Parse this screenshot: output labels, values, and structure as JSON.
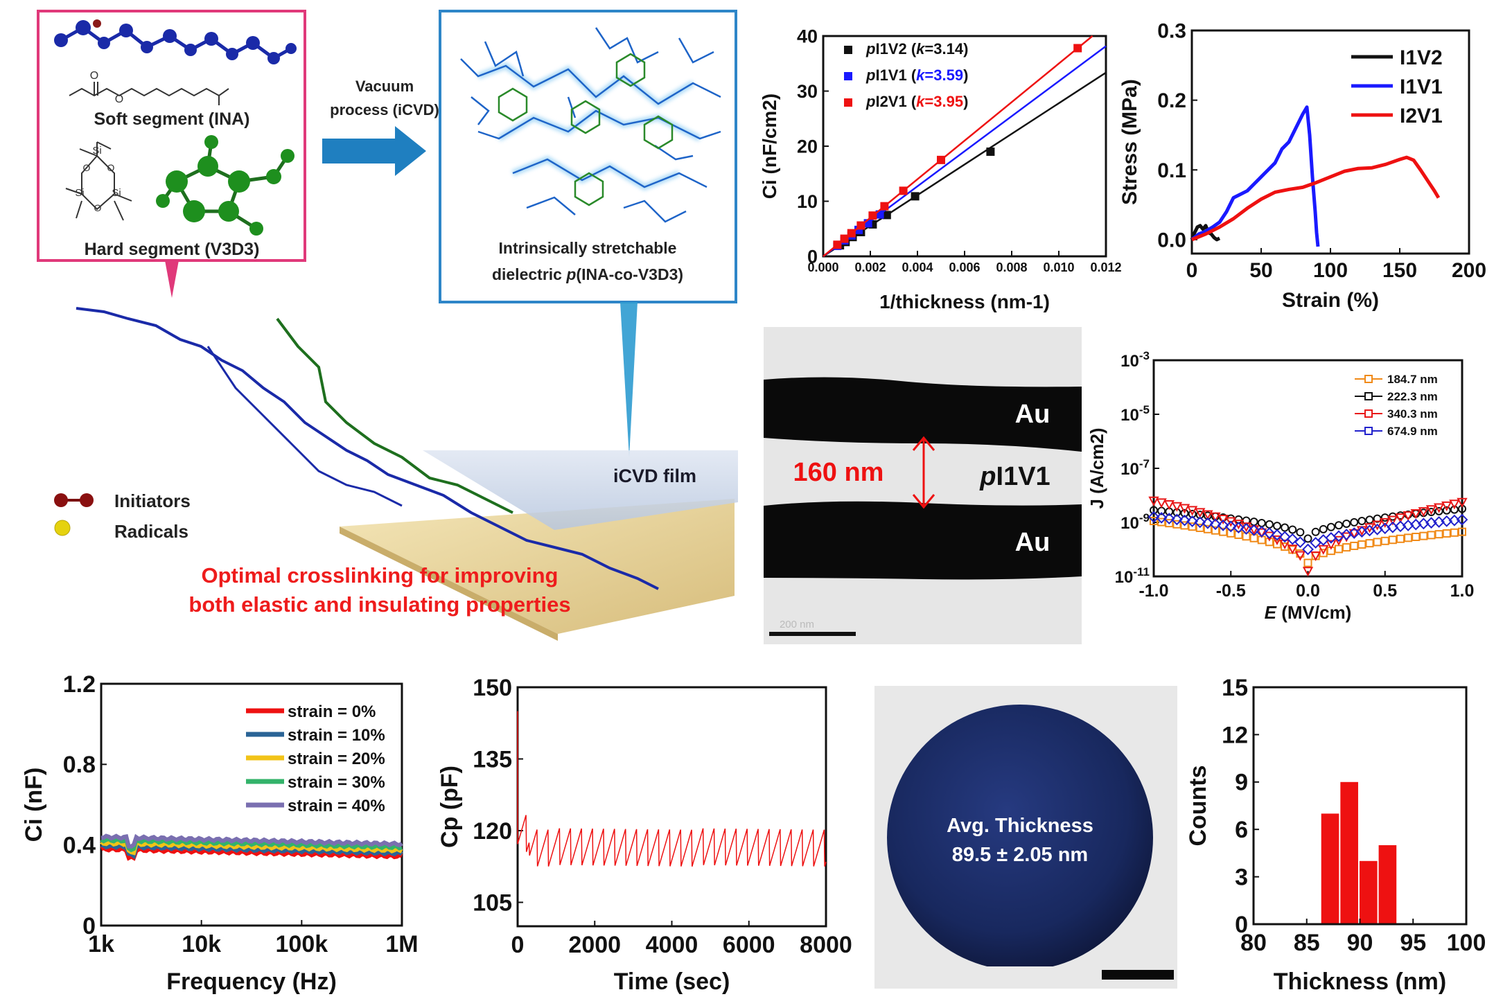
{
  "schematic": {
    "soft_label": "Soft segment (INA)",
    "hard_label": "Hard segment (V3D3)",
    "arrow_label_1": "Vacuum",
    "arrow_label_2": "process (iCVD)",
    "dielectric_label_1": "Intrinsically stretchable",
    "dielectric_label_2_pre": "dielectric ",
    "dielectric_label_2_it": "p",
    "dielectric_label_2_post": "(INA-co-V3D3)",
    "film_label": "iCVD film",
    "legend_initiators": "Initiators",
    "legend_radicals": "Radicals",
    "caption_1": "Optimal crosslinking for improving",
    "caption_2": "both elastic and insulating properties",
    "chem": {
      "O": "O",
      "Si": "Si"
    },
    "colors": {
      "pink_frame": "#e0397a",
      "blue_frame": "#2e86c8",
      "arrow": "#1f7fc0",
      "red_text": "#ee1c1c",
      "hard": "#1e8f1e",
      "soft": "#1a2aa8"
    }
  },
  "tem": {
    "au_top": "Au",
    "au_bottom": "Au",
    "thickness_label": "160 nm",
    "layer_pre": "p",
    "layer_post": "I1V1",
    "scalebar_text": "200 nm"
  },
  "wafer": {
    "line1": "Avg. Thickness",
    "line2": "89.5 ± 2.05 nm"
  },
  "chart_data": [
    {
      "id": "ci-vs-thickness",
      "type": "scatter",
      "xlabel": "1/thickness (nm-1)",
      "ylabel": "Ci (nF/cm2)",
      "xlim": [
        0,
        0.012
      ],
      "ylim": [
        0,
        40
      ],
      "xticks": [
        "0.000",
        "0.002",
        "0.004",
        "0.006",
        "0.008",
        "0.010",
        "0.012"
      ],
      "yticks": [
        "0",
        "10",
        "20",
        "30",
        "40"
      ],
      "legend": [
        {
          "pre": "p",
          "name": "I1V2",
          "k": "3.14",
          "color": "#111111"
        },
        {
          "pre": "p",
          "name": "I1V1",
          "k": "3.59",
          "color": "#1a1aff"
        },
        {
          "pre": "p",
          "name": "I2V1",
          "k": "3.95",
          "color": "#ee1111"
        }
      ],
      "series": [
        {
          "name": "pI1V2",
          "color": "#111111",
          "slope": 2780,
          "x": [
            0.00071,
            0.00095,
            0.00125,
            0.0016,
            0.0021,
            0.0027,
            0.0039,
            0.0071
          ],
          "y": [
            2.0,
            2.6,
            3.5,
            4.4,
            5.8,
            7.5,
            10.9,
            19.0
          ]
        },
        {
          "name": "pI1V1",
          "color": "#1a1aff",
          "slope": 3180,
          "x": [
            0.0006,
            0.0009,
            0.0012,
            0.0015,
            0.0019,
            0.0024
          ],
          "y": [
            1.9,
            2.9,
            3.8,
            4.8,
            6.0,
            7.6
          ]
        },
        {
          "name": "pI2V1",
          "color": "#ee1111",
          "slope": 3500,
          "x": [
            0.0006,
            0.0009,
            0.0012,
            0.0016,
            0.0021,
            0.0026,
            0.0034,
            0.005,
            0.0108
          ],
          "y": [
            2.1,
            3.2,
            4.2,
            5.6,
            7.4,
            9.1,
            11.9,
            17.5,
            37.8
          ]
        }
      ]
    },
    {
      "id": "stress-strain",
      "type": "line",
      "xlabel": "Strain (%)",
      "ylabel": "Stress (MPa)",
      "xlim": [
        0,
        200
      ],
      "ylim": [
        -0.02,
        0.3
      ],
      "xticks": [
        "0",
        "50",
        "100",
        "150",
        "200"
      ],
      "yticks": [
        "0.0",
        "0.1",
        "0.2",
        "0.3"
      ],
      "series": [
        {
          "name": "I1V2",
          "color": "#111111",
          "x": [
            0,
            2,
            4,
            6,
            8,
            10,
            12,
            14,
            16,
            18,
            20
          ],
          "y": [
            0,
            0.01,
            0.018,
            0.02,
            0.015,
            0.02,
            0.01,
            0.008,
            0.003,
            0.0,
            0.002
          ]
        },
        {
          "name": "I1V1",
          "color": "#1a1aff",
          "x": [
            0,
            5,
            10,
            15,
            20,
            25,
            30,
            35,
            40,
            45,
            50,
            55,
            60,
            65,
            70,
            75,
            80,
            83,
            85,
            87,
            89,
            90,
            91
          ],
          "y": [
            0,
            0.008,
            0.012,
            0.018,
            0.025,
            0.04,
            0.06,
            0.065,
            0.07,
            0.08,
            0.09,
            0.1,
            0.11,
            0.13,
            0.14,
            0.16,
            0.18,
            0.19,
            0.15,
            0.09,
            0.04,
            0.01,
            -0.01
          ]
        },
        {
          "name": "I2V1",
          "color": "#ee1111",
          "x": [
            0,
            10,
            20,
            30,
            40,
            50,
            60,
            70,
            80,
            90,
            100,
            110,
            120,
            130,
            140,
            150,
            155,
            160,
            165,
            170,
            175,
            178
          ],
          "y": [
            0,
            0.008,
            0.018,
            0.03,
            0.045,
            0.058,
            0.068,
            0.072,
            0.075,
            0.082,
            0.09,
            0.098,
            0.102,
            0.103,
            0.108,
            0.115,
            0.118,
            0.114,
            0.1,
            0.085,
            0.07,
            0.06
          ]
        }
      ]
    },
    {
      "id": "leakage",
      "type": "scatter",
      "xlabel": "E (MV/cm)",
      "ylabel": "J (A/cm2)",
      "xlim": [
        -1,
        1
      ],
      "ylim": [
        -11,
        -3
      ],
      "yscale": "log",
      "xticks": [
        "-1.0",
        "-0.5",
        "0.0",
        "0.5",
        "1.0"
      ],
      "yticks": [
        "10-11",
        "10-9",
        "10-7",
        "10-5",
        "10-3"
      ],
      "series": [
        {
          "name": "184.7 nm",
          "color": "#f08a18",
          "marker": "square",
          "left": -8.95,
          "right": -9.35,
          "floor": -10.5,
          "lin": 0.05
        },
        {
          "name": "222.3 nm",
          "color": "#111111",
          "marker": "circle",
          "left": -8.55,
          "right": -8.5,
          "floor": -9.6,
          "lin": 0.15
        },
        {
          "name": "340.3 nm",
          "color": "#e81818",
          "marker": "triangle",
          "left": -8.2,
          "right": -8.25,
          "floor": -10.8,
          "lin": 0.15
        },
        {
          "name": "674.9 nm",
          "color": "#2222cc",
          "marker": "diamond",
          "left": -8.8,
          "right": -8.9,
          "floor": -10.0,
          "lin": 0.1
        }
      ]
    },
    {
      "id": "ci-vs-frequency",
      "type": "line",
      "xlabel": "Frequency (Hz)",
      "ylabel": "Ci (nF)",
      "xlim": [
        1000,
        1000000
      ],
      "xscale": "log",
      "ylim": [
        0,
        1.2
      ],
      "xticks": [
        "1k",
        "10k",
        "100k",
        "1M"
      ],
      "yticks": [
        "0",
        "0.4",
        "0.8",
        "1.2"
      ],
      "series": [
        {
          "name": "strain = 0%",
          "color": "#ee1111",
          "base": 0.38
        },
        {
          "name": "strain = 10%",
          "color": "#2a6496",
          "base": 0.395
        },
        {
          "name": "strain = 20%",
          "color": "#f2c318",
          "base": 0.41
        },
        {
          "name": "strain = 30%",
          "color": "#33b36a",
          "base": 0.425
        },
        {
          "name": "strain = 40%",
          "color": "#7a6fb0",
          "base": 0.44
        }
      ]
    },
    {
      "id": "cp-vs-time",
      "type": "line",
      "xlabel": "Time (sec)",
      "ylabel": "Cp (pF)",
      "xlim": [
        0,
        8000
      ],
      "ylim": [
        100,
        150
      ],
      "xticks": [
        "0",
        "2000",
        "4000",
        "6000",
        "8000"
      ],
      "yticks": [
        "105",
        "120",
        "135",
        "150"
      ],
      "series": [
        {
          "name": "Cp",
          "color": "#ee1111",
          "mean": 116.5,
          "band": 4,
          "start": 145
        }
      ]
    },
    {
      "id": "thickness-histogram",
      "type": "bar",
      "xlabel": "Thickness (nm)",
      "ylabel": "Counts",
      "xlim": [
        80,
        100
      ],
      "ylim": [
        0,
        15
      ],
      "xticks": [
        "80",
        "85",
        "90",
        "95",
        "100"
      ],
      "yticks": [
        "0",
        "3",
        "6",
        "9",
        "12",
        "15"
      ],
      "bin_width": 1.8,
      "color": "#ee1111",
      "x": [
        87.2,
        89.0,
        90.8,
        92.6
      ],
      "values": [
        7,
        9,
        4,
        5
      ]
    }
  ]
}
